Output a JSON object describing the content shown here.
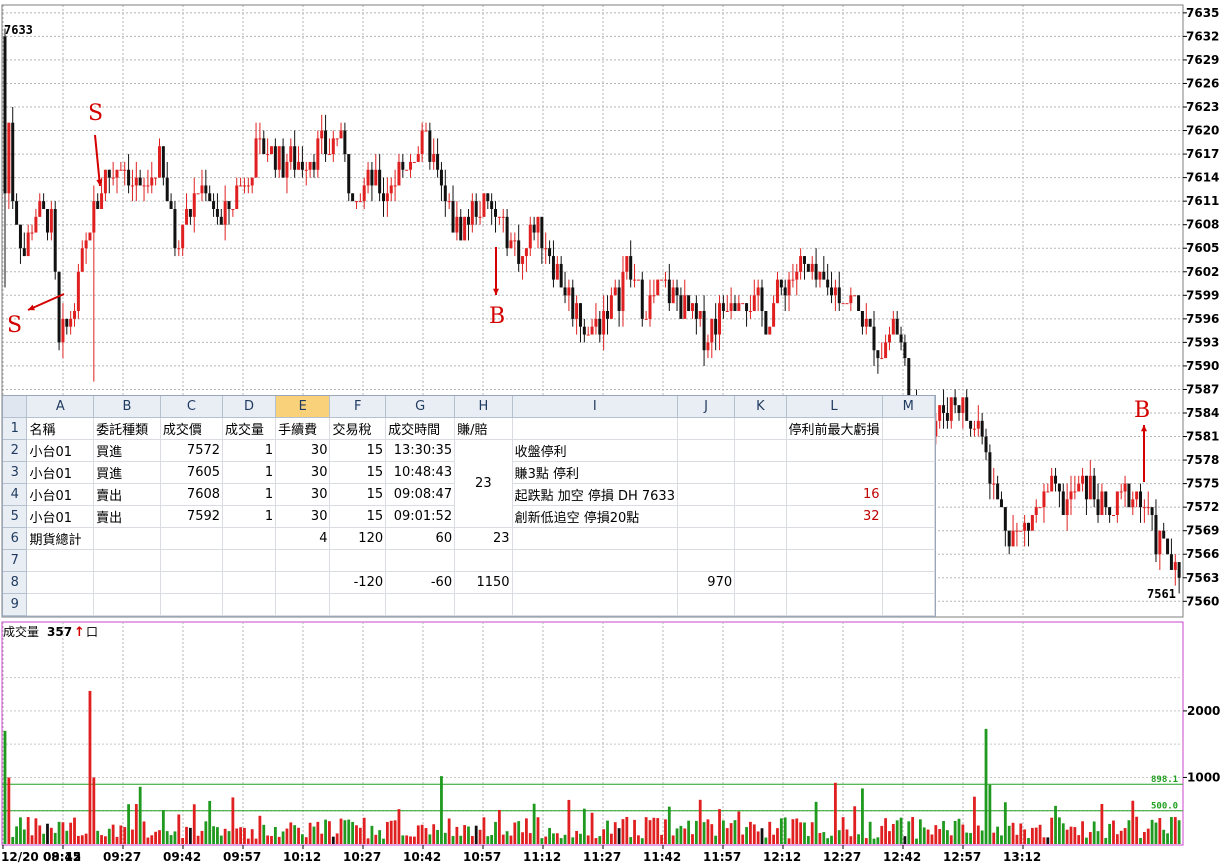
{
  "price_panel": {
    "top_label": "7633",
    "last_label": "7561"
  },
  "volume_panel": {
    "title": "成交量",
    "value": "357",
    "arrow": "↑",
    "unit": "口",
    "ref_lines": [
      "898.1",
      "500.0"
    ]
  },
  "annotations": [
    "S",
    "S",
    "B",
    "B"
  ],
  "colors": {
    "up": "#e02020",
    "down": "#111111",
    "vol_up": "#e02020",
    "vol_down": "#1f9a1f",
    "vol_other": "#111111",
    "frame_vol": "#cc44cc",
    "ref_line": "#22a022",
    "annotation": "#d40000",
    "cell_red": "#c00000"
  },
  "spreadsheet": {
    "col_headers": [
      "A",
      "B",
      "C",
      "D",
      "E",
      "F",
      "G",
      "H",
      "I",
      "J",
      "K",
      "L",
      "M"
    ],
    "row_numbers": [
      "1",
      "2",
      "3",
      "4",
      "5",
      "6",
      "7",
      "8",
      "9"
    ],
    "header_row": {
      "A": "名稱",
      "B": "委託種類",
      "C": "成交價",
      "D": "成交量",
      "E": "手續費",
      "F": "交易稅",
      "G": "成交時間",
      "H": "賺/賠",
      "L": "停利前最大虧損"
    },
    "rows": [
      {
        "A": "小台01",
        "B": "買進",
        "C": "7572",
        "D": "1",
        "E": "30",
        "F": "15",
        "G": "13:30:35",
        "I": "收盤停利"
      },
      {
        "A": "小台01",
        "B": "買進",
        "C": "7605",
        "D": "1",
        "E": "30",
        "F": "15",
        "G": "10:48:43",
        "I": "賺3點   停利"
      },
      {
        "A": "小台01",
        "B": "賣出",
        "C": "7608",
        "D": "1",
        "E": "30",
        "F": "15",
        "G": "09:08:47",
        "I": "起跌點   加空     停損 DH   7633",
        "L": "16"
      },
      {
        "A": "小台01",
        "B": "賣出",
        "C": "7592",
        "D": "1",
        "E": "30",
        "F": "15",
        "G": "09:01:52",
        "I": "創新低追空     停損20點",
        "L": "32"
      },
      {
        "A": "期貨總計",
        "E": "4",
        "F": "120",
        "G": "60",
        "H": "23"
      },
      {},
      {
        "F": "-120",
        "G": "-60",
        "H": "1150",
        "J": "970"
      },
      {}
    ],
    "merged_H": "23"
  },
  "chart_data": [
    {
      "type": "candlestick",
      "title": "",
      "ylim": [
        7558,
        7636
      ],
      "y_ticks": [
        7635,
        7632,
        7629,
        7626,
        7623,
        7620,
        7617,
        7614,
        7611,
        7608,
        7605,
        7602,
        7599,
        7596,
        7593,
        7590,
        7587,
        7584,
        7581,
        7578,
        7575,
        7572,
        7569,
        7566,
        7563,
        7560
      ],
      "high": 7633,
      "low": 7561,
      "x_ticks": [
        "12/20 08:45",
        "09:12",
        "09:27",
        "09:42",
        "09:57",
        "10:12",
        "10:27",
        "10:42",
        "10:57",
        "11:12",
        "11:27",
        "11:42",
        "11:57",
        "12:12",
        "12:27",
        "12:42",
        "12:57",
        "13:12"
      ],
      "close_path": [
        [
          0,
          7630
        ],
        [
          2,
          7612
        ],
        [
          5,
          7604
        ],
        [
          8,
          7610
        ],
        [
          12,
          7608
        ],
        [
          14,
          7592
        ],
        [
          18,
          7598
        ],
        [
          22,
          7608
        ],
        [
          26,
          7614
        ],
        [
          30,
          7616
        ],
        [
          35,
          7612
        ],
        [
          40,
          7616
        ],
        [
          44,
          7606
        ],
        [
          48,
          7610
        ],
        [
          52,
          7614
        ],
        [
          56,
          7608
        ],
        [
          60,
          7612
        ],
        [
          64,
          7616
        ],
        [
          68,
          7618
        ],
        [
          72,
          7616
        ],
        [
          76,
          7616
        ],
        [
          80,
          7617
        ],
        [
          84,
          7618
        ],
        [
          86,
          7620
        ],
        [
          89,
          7614
        ],
        [
          92,
          7612
        ],
        [
          95,
          7614
        ],
        [
          98,
          7612
        ],
        [
          101,
          7614
        ],
        [
          104,
          7616
        ],
        [
          107,
          7618
        ],
        [
          110,
          7618
        ],
        [
          113,
          7612
        ],
        [
          116,
          7608
        ],
        [
          119,
          7608
        ],
        [
          122,
          7610
        ],
        [
          125,
          7610
        ],
        [
          128,
          7608
        ],
        [
          131,
          7606
        ],
        [
          134,
          7604
        ],
        [
          137,
          7608
        ],
        [
          140,
          7606
        ],
        [
          143,
          7602
        ],
        [
          146,
          7599
        ],
        [
          149,
          7596
        ],
        [
          152,
          7594
        ],
        [
          155,
          7597
        ],
        [
          158,
          7598
        ],
        [
          161,
          7603
        ],
        [
          164,
          7599
        ],
        [
          167,
          7598
        ],
        [
          170,
          7600
        ],
        [
          173,
          7599
        ],
        [
          176,
          7597
        ],
        [
          179,
          7595
        ],
        [
          182,
          7594
        ],
        [
          185,
          7597
        ],
        [
          188,
          7599
        ],
        [
          191,
          7600
        ],
        [
          194,
          7598
        ],
        [
          197,
          7596
        ],
        [
          200,
          7599
        ],
        [
          203,
          7601
        ],
        [
          206,
          7603
        ],
        [
          209,
          7601
        ],
        [
          212,
          7600
        ],
        [
          215,
          7600
        ],
        [
          218,
          7599
        ],
        [
          221,
          7597
        ],
        [
          224,
          7594
        ],
        [
          227,
          7592
        ],
        [
          230,
          7596
        ],
        [
          233,
          7590
        ],
        [
          235,
          7585
        ],
        [
          238,
          7579
        ],
        [
          241,
          7583
        ],
        [
          244,
          7585
        ],
        [
          247,
          7586
        ],
        [
          250,
          7582
        ],
        [
          253,
          7583
        ],
        [
          256,
          7574
        ],
        [
          259,
          7570
        ],
        [
          262,
          7568
        ],
        [
          265,
          7570
        ],
        [
          268,
          7572
        ],
        [
          271,
          7574
        ],
        [
          274,
          7572
        ],
        [
          277,
          7574
        ],
        [
          280,
          7575
        ],
        [
          283,
          7573
        ],
        [
          286,
          7570
        ],
        [
          289,
          7573
        ],
        [
          292,
          7574
        ],
        [
          295,
          7572
        ],
        [
          298,
          7568
        ],
        [
          301,
          7566
        ],
        [
          303,
          7563
        ],
        [
          304,
          7562
        ]
      ],
      "volume": {
        "ylim": [
          0,
          2900
        ],
        "y_ticks": [
          1000,
          2000
        ],
        "ref_lines": [
          898.1,
          500.0
        ],
        "last": 357
      }
    }
  ]
}
